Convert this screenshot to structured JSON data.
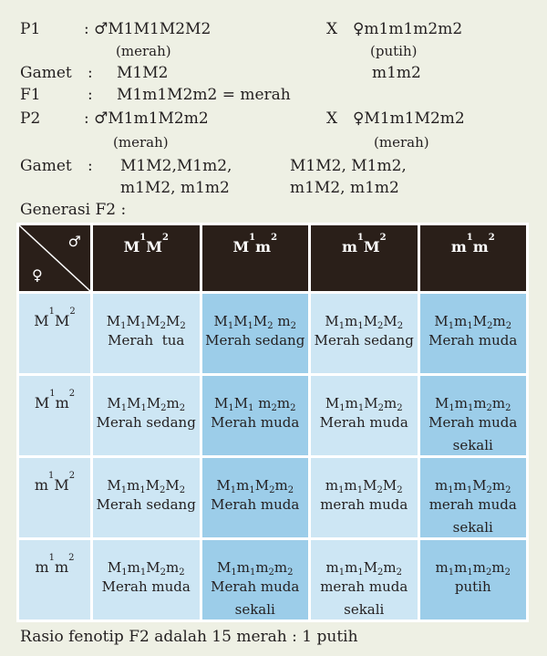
{
  "p1": {
    "label": "P1",
    "male_genotype": ": ♂M1M1M2M2",
    "male_phenotype": "(merah)",
    "cross": "X",
    "female_genotype": "♀m1m1m2m2",
    "female_phenotype": "(putih)"
  },
  "gamet1": {
    "label": "Gamet",
    "colon": ":",
    "male": "M1M2",
    "female": "m1m2"
  },
  "f1": {
    "label": "F1",
    "colon": ":",
    "text": "M1m1M2m2 = merah"
  },
  "p2": {
    "label": "P2",
    "male_genotype": ": ♂M1m1M2m2",
    "male_phenotype": "(merah)",
    "cross": "X",
    "female_genotype": "♀M1m1M2m2",
    "female_phenotype": "(merah)"
  },
  "gamet2": {
    "label": "Gamet",
    "colon": ":",
    "male_line1": "M1M2,M1m2,",
    "male_line2": "m1M2, m1m2",
    "female_line1": "M1M2, M1m2,",
    "female_line2": "m1M2, m1m2"
  },
  "generasi_label": "Generasi F2 :",
  "table": {
    "corner_male": "♂",
    "corner_female": "♀",
    "col_headers": [
      {
        "a": "M",
        "s1": "1",
        "b": "M",
        "s2": "2"
      },
      {
        "a": "M",
        "s1": "1",
        "b": "m",
        "s2": "2"
      },
      {
        "a": "m",
        "s1": "1",
        "b": "M",
        "s2": "2"
      },
      {
        "a": "m",
        "s1": "1",
        "b": "m",
        "s2": "2"
      }
    ],
    "row_headers": [
      {
        "a": "M",
        "s1": "1",
        "b": "M",
        "s2": "2"
      },
      {
        "a": "M",
        "s1": "1",
        "b": "m",
        "s2": "2"
      },
      {
        "a": "m",
        "s1": "1",
        "b": "M",
        "s2": "2"
      },
      {
        "a": "m",
        "s1": "1",
        "b": "m",
        "s2": "2"
      }
    ],
    "rows": [
      [
        {
          "g": [
            "M",
            "1",
            "M",
            "1",
            "M",
            "2",
            "M",
            "2"
          ],
          "p1": "Merah  tua",
          "p2": ""
        },
        {
          "g": [
            "M",
            "1",
            "M",
            "1",
            "M",
            "2",
            " m",
            "2"
          ],
          "p1": "Merah sedang",
          "p2": ""
        },
        {
          "g": [
            "M",
            "1",
            "m",
            "1",
            "M",
            "2",
            "M",
            "2"
          ],
          "p1": "Merah sedang",
          "p2": ""
        },
        {
          "g": [
            "M",
            "1",
            "m",
            "1",
            "M",
            "2",
            "m",
            "2"
          ],
          "p1": "Merah muda",
          "p2": ""
        }
      ],
      [
        {
          "g": [
            "M",
            "1",
            "M",
            "1",
            "M",
            "2",
            "m",
            "2"
          ],
          "p1": "Merah sedang",
          "p2": ""
        },
        {
          "g": [
            "M",
            "1",
            "M",
            "1",
            " m",
            "2",
            "m",
            "2"
          ],
          "p1": "Merah muda",
          "p2": ""
        },
        {
          "g": [
            "M",
            "1",
            "m",
            "1",
            "M",
            "2",
            "m",
            "2"
          ],
          "p1": "Merah muda",
          "p2": ""
        },
        {
          "g": [
            "M",
            "1",
            "m",
            "1",
            "m",
            "2",
            "m",
            "2"
          ],
          "p1": "Merah muda",
          "p2": "sekali"
        }
      ],
      [
        {
          "g": [
            "M",
            "1",
            "m",
            "1",
            "M",
            "2",
            "M",
            "2"
          ],
          "p1": "Merah sedang",
          "p2": ""
        },
        {
          "g": [
            "M",
            "1",
            "m",
            "1",
            "M",
            "2",
            "m",
            "2"
          ],
          "p1": "Merah muda",
          "p2": ""
        },
        {
          "g": [
            "m",
            "1",
            "m",
            "1",
            "M",
            "2",
            "M",
            "2"
          ],
          "p1": "merah muda",
          "p2": ""
        },
        {
          "g": [
            "m",
            "1",
            "m",
            "1",
            "M",
            "2",
            "m",
            "2"
          ],
          "p1": "merah muda",
          "p2": "sekali"
        }
      ],
      [
        {
          "g": [
            "M",
            "1",
            "m",
            "1",
            "M",
            "2",
            "m",
            "2"
          ],
          "p1": "Merah muda",
          "p2": ""
        },
        {
          "g": [
            "M",
            "1",
            "m",
            "1",
            "m",
            "2",
            "m",
            "2"
          ],
          "p1": "Merah muda",
          "p2": "sekali"
        },
        {
          "g": [
            "m",
            "1",
            "m",
            "1",
            "M",
            "2",
            "m",
            "2"
          ],
          "p1": "merah muda",
          "p2": "sekali"
        },
        {
          "g": [
            "m",
            "1",
            "m",
            "1",
            "m",
            "2",
            "m",
            "2"
          ],
          "p1": "putih",
          "p2": ""
        }
      ]
    ]
  },
  "ratio_text": "Rasio fenotip F2 adalah 15 merah : 1 putih",
  "colors": {
    "page_bg": "#eef0e4",
    "header_bg": "#2a1f19",
    "cell_light": "#cde6f4",
    "cell_dark": "#9ccde9"
  }
}
